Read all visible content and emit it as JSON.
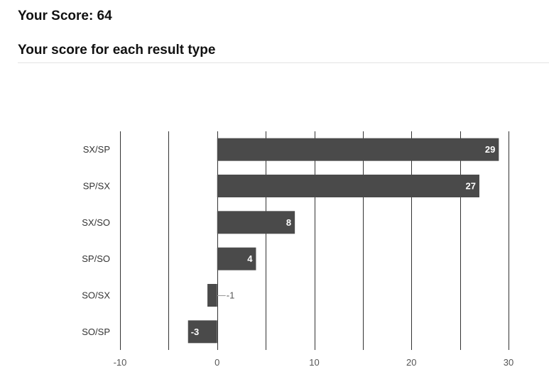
{
  "header": {
    "score_text": "Your Score: 64",
    "section_title": "Your score for each result type"
  },
  "chart_data": {
    "type": "bar",
    "orientation": "horizontal",
    "categories": [
      "SX/SP",
      "SP/SX",
      "SX/SO",
      "SP/SO",
      "SO/SX",
      "SO/SP"
    ],
    "values": [
      29,
      27,
      8,
      4,
      -1,
      -3
    ],
    "xlim": [
      -10,
      30
    ],
    "xticks": [
      -10,
      0,
      10,
      20,
      30
    ],
    "gridlines_every": 5,
    "grid": true,
    "bar_color": "#4a4a4a",
    "label_color_inside": "#ffffff",
    "label_color_negative_outside": "#cc0000"
  }
}
